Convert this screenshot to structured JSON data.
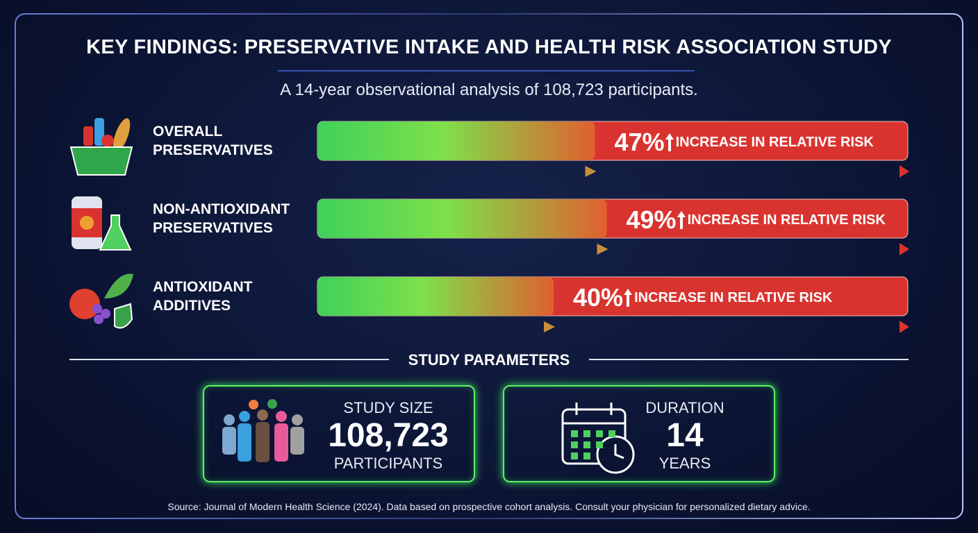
{
  "chart_data": {
    "type": "bar",
    "title": "KEY FINDINGS: PRESERVATIVE INTAKE AND HEALTH RISK ASSOCIATION STUDY",
    "subtitle": "A 14-year observational analysis of 108,723 participants.",
    "categories": [
      "OVERALL PRESERVATIVES",
      "NON-ANTIOXIDANT PRESERVATIVES",
      "ANTIOXIDANT ADDITIVES"
    ],
    "values": [
      47,
      49,
      40
    ],
    "value_labels": [
      "47%",
      "49%",
      "40%"
    ],
    "annotation": "INCREASE IN RELATIVE RISK",
    "xlim": [
      0,
      100
    ],
    "colors": {
      "low": "#3fd15a",
      "mid": "#7ee04a",
      "high": "#d9332f"
    }
  },
  "parameters": {
    "heading": "STUDY PARAMETERS",
    "cards": [
      {
        "label": "STUDY SIZE",
        "value": "108,723",
        "unit": "PARTICIPANTS"
      },
      {
        "label": "DURATION",
        "value": "14",
        "unit": "YEARS"
      }
    ]
  },
  "source": "Source: Journal of Modern Health Science (2024). Data based on prospective cohort analysis. Consult your physician for personalized dietary advice."
}
